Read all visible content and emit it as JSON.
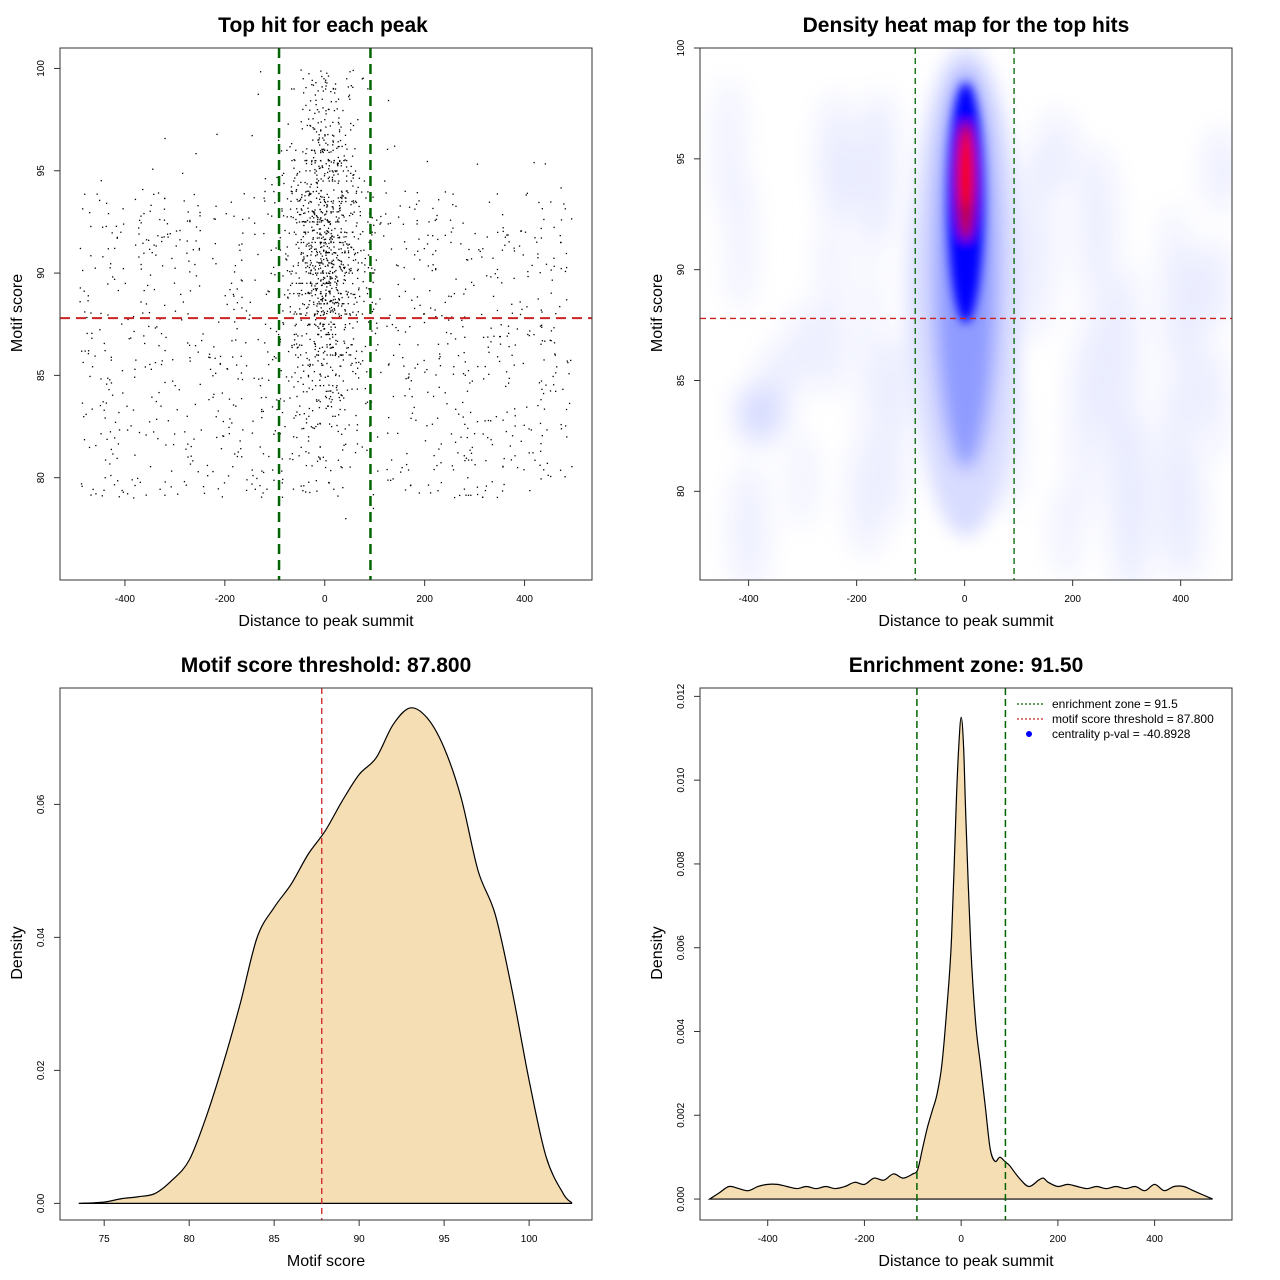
{
  "chart_data": [
    {
      "type": "scatter",
      "title": "Top hit for each peak",
      "xlabel": "Distance to peak summit",
      "ylabel": "Motif score",
      "xlim": [
        -530,
        535
      ],
      "ylim": [
        75,
        101
      ],
      "xticks": [
        -400,
        -200,
        0,
        200,
        400
      ],
      "yticks": [
        80,
        85,
        90,
        95,
        100
      ],
      "xtick_labels": [
        "-400",
        "-200",
        "0",
        "200",
        "400"
      ],
      "ytick_labels": [
        "80",
        "85",
        "90",
        "95",
        "100"
      ],
      "vlines": [
        -91.5,
        91.5
      ],
      "hline": 87.8,
      "point_count": 2200,
      "colors": {
        "points": "#000000",
        "vlines": "#006400",
        "hline": "#cc2222"
      }
    },
    {
      "type": "heatmap",
      "title": "Density heat map for the top hits",
      "xlabel": "Distance to peak summit",
      "ylabel": "Motif score",
      "xlim": [
        -490,
        495
      ],
      "ylim": [
        76,
        100
      ],
      "xticks": [
        -400,
        -200,
        0,
        200,
        400
      ],
      "yticks": [
        80,
        85,
        90,
        95,
        100
      ],
      "xtick_labels": [
        "-400",
        "-200",
        "0",
        "200",
        "400"
      ],
      "ytick_labels": [
        "80",
        "85",
        "90",
        "95",
        "100"
      ],
      "vlines": [
        -91.5,
        91.5
      ],
      "hline": 87.8,
      "colors": {
        "low": "#ffffff",
        "mid": "#0000ff",
        "high": "#ff0000",
        "vlines": "#006400",
        "hline": "#cc2222"
      }
    },
    {
      "type": "area",
      "title": "Motif score threshold: 87.800",
      "xlabel": "Motif score",
      "ylabel": "Density",
      "xlim": [
        72.4,
        103.7
      ],
      "ylim": [
        -0.0025,
        0.0775
      ],
      "xticks": [
        75,
        80,
        85,
        90,
        95,
        100
      ],
      "yticks": [
        0.0,
        0.02,
        0.04,
        0.06
      ],
      "xtick_labels": [
        "75",
        "80",
        "85",
        "90",
        "95",
        "100"
      ],
      "ytick_labels": [
        "0.00",
        "0.02",
        "0.04",
        "0.06"
      ],
      "vline": 87.8,
      "x": [
        73.5,
        75,
        76,
        77,
        78,
        79,
        80,
        81,
        82,
        83,
        84,
        85,
        86,
        87,
        88,
        89,
        90,
        91,
        92,
        93,
        94,
        95,
        96,
        97,
        98,
        99,
        100,
        101,
        102,
        102.5
      ],
      "y": [
        0.0,
        0.0002,
        0.0007,
        0.001,
        0.0015,
        0.0035,
        0.0065,
        0.013,
        0.021,
        0.03,
        0.04,
        0.0445,
        0.048,
        0.0525,
        0.056,
        0.0605,
        0.0645,
        0.067,
        0.072,
        0.0745,
        0.073,
        0.0685,
        0.061,
        0.05,
        0.0435,
        0.032,
        0.0185,
        0.007,
        0.0015,
        0.0001
      ],
      "colors": {
        "fill": "#f5deb3",
        "line": "#000000",
        "vline": "#cc2222"
      }
    },
    {
      "type": "area",
      "title": "Enrichment zone: 91.50",
      "xlabel": "Distance to peak summit",
      "ylabel": "Density",
      "xlim": [
        -540,
        560
      ],
      "ylim": [
        -0.0005,
        0.0122
      ],
      "xticks": [
        -400,
        -200,
        0,
        200,
        400
      ],
      "yticks": [
        0.0,
        0.002,
        0.004,
        0.006,
        0.008,
        0.01,
        0.012
      ],
      "xtick_labels": [
        "-400",
        "-200",
        "0",
        "200",
        "400"
      ],
      "ytick_labels": [
        "0.000",
        "0.002",
        "0.004",
        "0.006",
        "0.008",
        "0.010",
        "0.012"
      ],
      "vlines": [
        -91.5,
        91.5
      ],
      "x": [
        -520,
        -500,
        -480,
        -460,
        -440,
        -420,
        -400,
        -380,
        -360,
        -340,
        -320,
        -300,
        -280,
        -260,
        -240,
        -220,
        -200,
        -180,
        -160,
        -140,
        -120,
        -100,
        -90,
        -80,
        -70,
        -60,
        -50,
        -40,
        -30,
        -20,
        -10,
        -5,
        0,
        5,
        10,
        20,
        30,
        40,
        50,
        60,
        70,
        80,
        90,
        100,
        120,
        140,
        160,
        170,
        180,
        200,
        220,
        240,
        260,
        280,
        300,
        320,
        340,
        360,
        380,
        400,
        420,
        440,
        460,
        480,
        500,
        520
      ],
      "y": [
        0.0,
        0.00015,
        0.0003,
        0.00025,
        0.0002,
        0.0003,
        0.00035,
        0.00035,
        0.0003,
        0.00025,
        0.0003,
        0.00025,
        0.0003,
        0.00025,
        0.0003,
        0.0004,
        0.00035,
        0.0005,
        0.00045,
        0.0006,
        0.0005,
        0.0006,
        0.0007,
        0.0012,
        0.0017,
        0.0021,
        0.0025,
        0.0032,
        0.0045,
        0.0062,
        0.0095,
        0.0108,
        0.0115,
        0.0108,
        0.009,
        0.006,
        0.0042,
        0.0032,
        0.0022,
        0.0012,
        0.0009,
        0.001,
        0.0009,
        0.0008,
        0.0005,
        0.0003,
        0.00045,
        0.0005,
        0.0004,
        0.0003,
        0.00035,
        0.0003,
        0.00025,
        0.0003,
        0.00025,
        0.0003,
        0.00025,
        0.0003,
        0.0002,
        0.00035,
        0.0002,
        0.0003,
        0.0003,
        0.0002,
        0.0001,
        0.0
      ],
      "legend": {
        "placement": "top-right",
        "entries": [
          {
            "label": "enrichment zone = 91.5",
            "style": "dotted",
            "color": "#006400"
          },
          {
            "label": "motif score threshold = 87.800",
            "style": "dotted",
            "color": "#cc2222"
          },
          {
            "label": "centrality p-val = -40.8928",
            "style": "point",
            "color": "#0000ff"
          }
        ]
      },
      "colors": {
        "fill": "#f5deb3",
        "line": "#000000",
        "vlines": "#006400"
      }
    }
  ]
}
